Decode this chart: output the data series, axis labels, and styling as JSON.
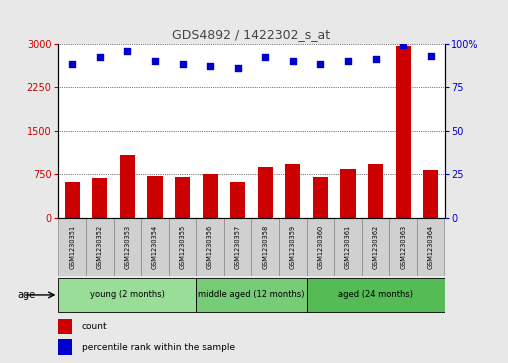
{
  "title": "GDS4892 / 1422302_s_at",
  "samples": [
    "GSM1230351",
    "GSM1230352",
    "GSM1230353",
    "GSM1230354",
    "GSM1230355",
    "GSM1230356",
    "GSM1230357",
    "GSM1230358",
    "GSM1230359",
    "GSM1230360",
    "GSM1230361",
    "GSM1230362",
    "GSM1230363",
    "GSM1230364"
  ],
  "counts": [
    620,
    680,
    1080,
    720,
    700,
    760,
    620,
    870,
    920,
    700,
    840,
    920,
    2960,
    830
  ],
  "percentile_ranks": [
    88,
    92,
    96,
    90,
    88,
    87,
    86,
    92,
    90,
    88,
    90,
    91,
    99,
    93
  ],
  "ylim_left": [
    0,
    3000
  ],
  "ylim_right": [
    0,
    100
  ],
  "yticks_left": [
    0,
    750,
    1500,
    2250,
    3000
  ],
  "yticks_right": [
    0,
    25,
    50,
    75,
    100
  ],
  "bar_color": "#cc0000",
  "dot_color": "#0000cc",
  "groups": [
    {
      "label": "young (2 months)",
      "start": 0,
      "end": 4
    },
    {
      "label": "middle aged (12 months)",
      "start": 5,
      "end": 8
    },
    {
      "label": "aged (24 months)",
      "start": 9,
      "end": 13
    }
  ],
  "group_colors": [
    "#99dd99",
    "#77cc77",
    "#55bb55"
  ],
  "age_label": "age",
  "legend_count_label": "count",
  "legend_pct_label": "percentile rank within the sample",
  "bg_color": "#e8e8e8",
  "plot_bg": "#ffffff",
  "title_color": "#444444",
  "left_axis_color": "#cc0000",
  "right_axis_color": "#0000cc",
  "sample_box_color": "#d0d0d0",
  "right_tick_labels": [
    "0",
    "25",
    "50",
    "75",
    "100%"
  ]
}
